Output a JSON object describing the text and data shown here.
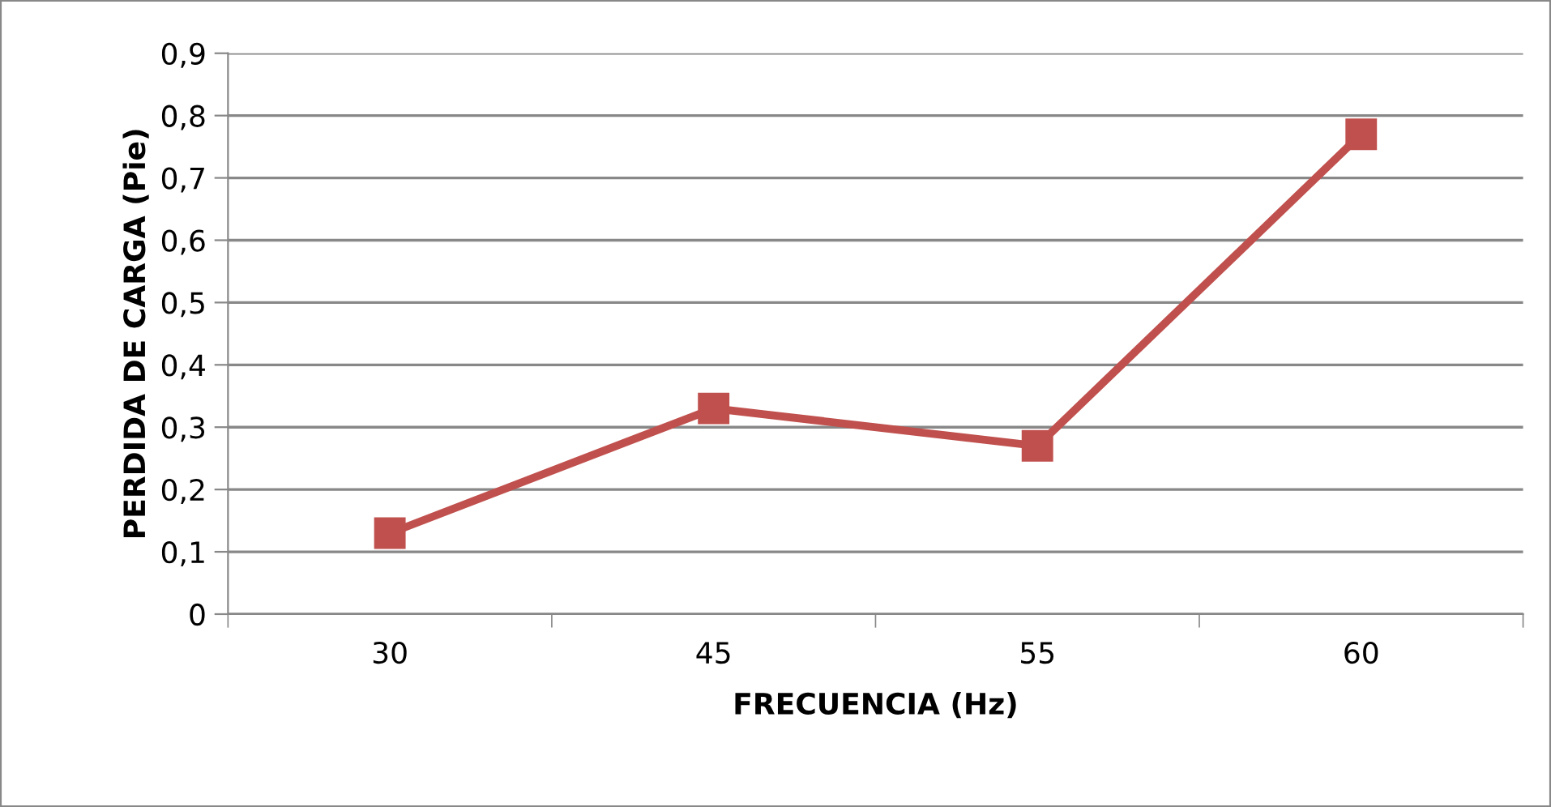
{
  "chart_data": {
    "type": "line",
    "xlabel": "FRECUENCIA (Hz)",
    "ylabel": "PERDIDA DE CARGA (Pie)",
    "categories": [
      "30",
      "45",
      "55",
      "60"
    ],
    "series": [
      {
        "color": "#c0504d",
        "values": [
          0.13,
          0.33,
          0.27,
          0.77
        ]
      }
    ],
    "ylim": [
      0,
      0.9
    ],
    "yticks": [
      {
        "value": 0,
        "label": "0"
      },
      {
        "value": 0.1,
        "label": "0,1"
      },
      {
        "value": 0.2,
        "label": "0,2"
      },
      {
        "value": 0.3,
        "label": "0,3"
      },
      {
        "value": 0.4,
        "label": "0,4"
      },
      {
        "value": 0.5,
        "label": "0,5"
      },
      {
        "value": 0.6,
        "label": "0,6"
      },
      {
        "value": 0.7,
        "label": "0,7"
      },
      {
        "value": 0.8,
        "label": "0,8"
      },
      {
        "value": 0.9,
        "label": "0,9"
      }
    ],
    "grid": "y",
    "marker": "square",
    "line_style": "solid"
  }
}
